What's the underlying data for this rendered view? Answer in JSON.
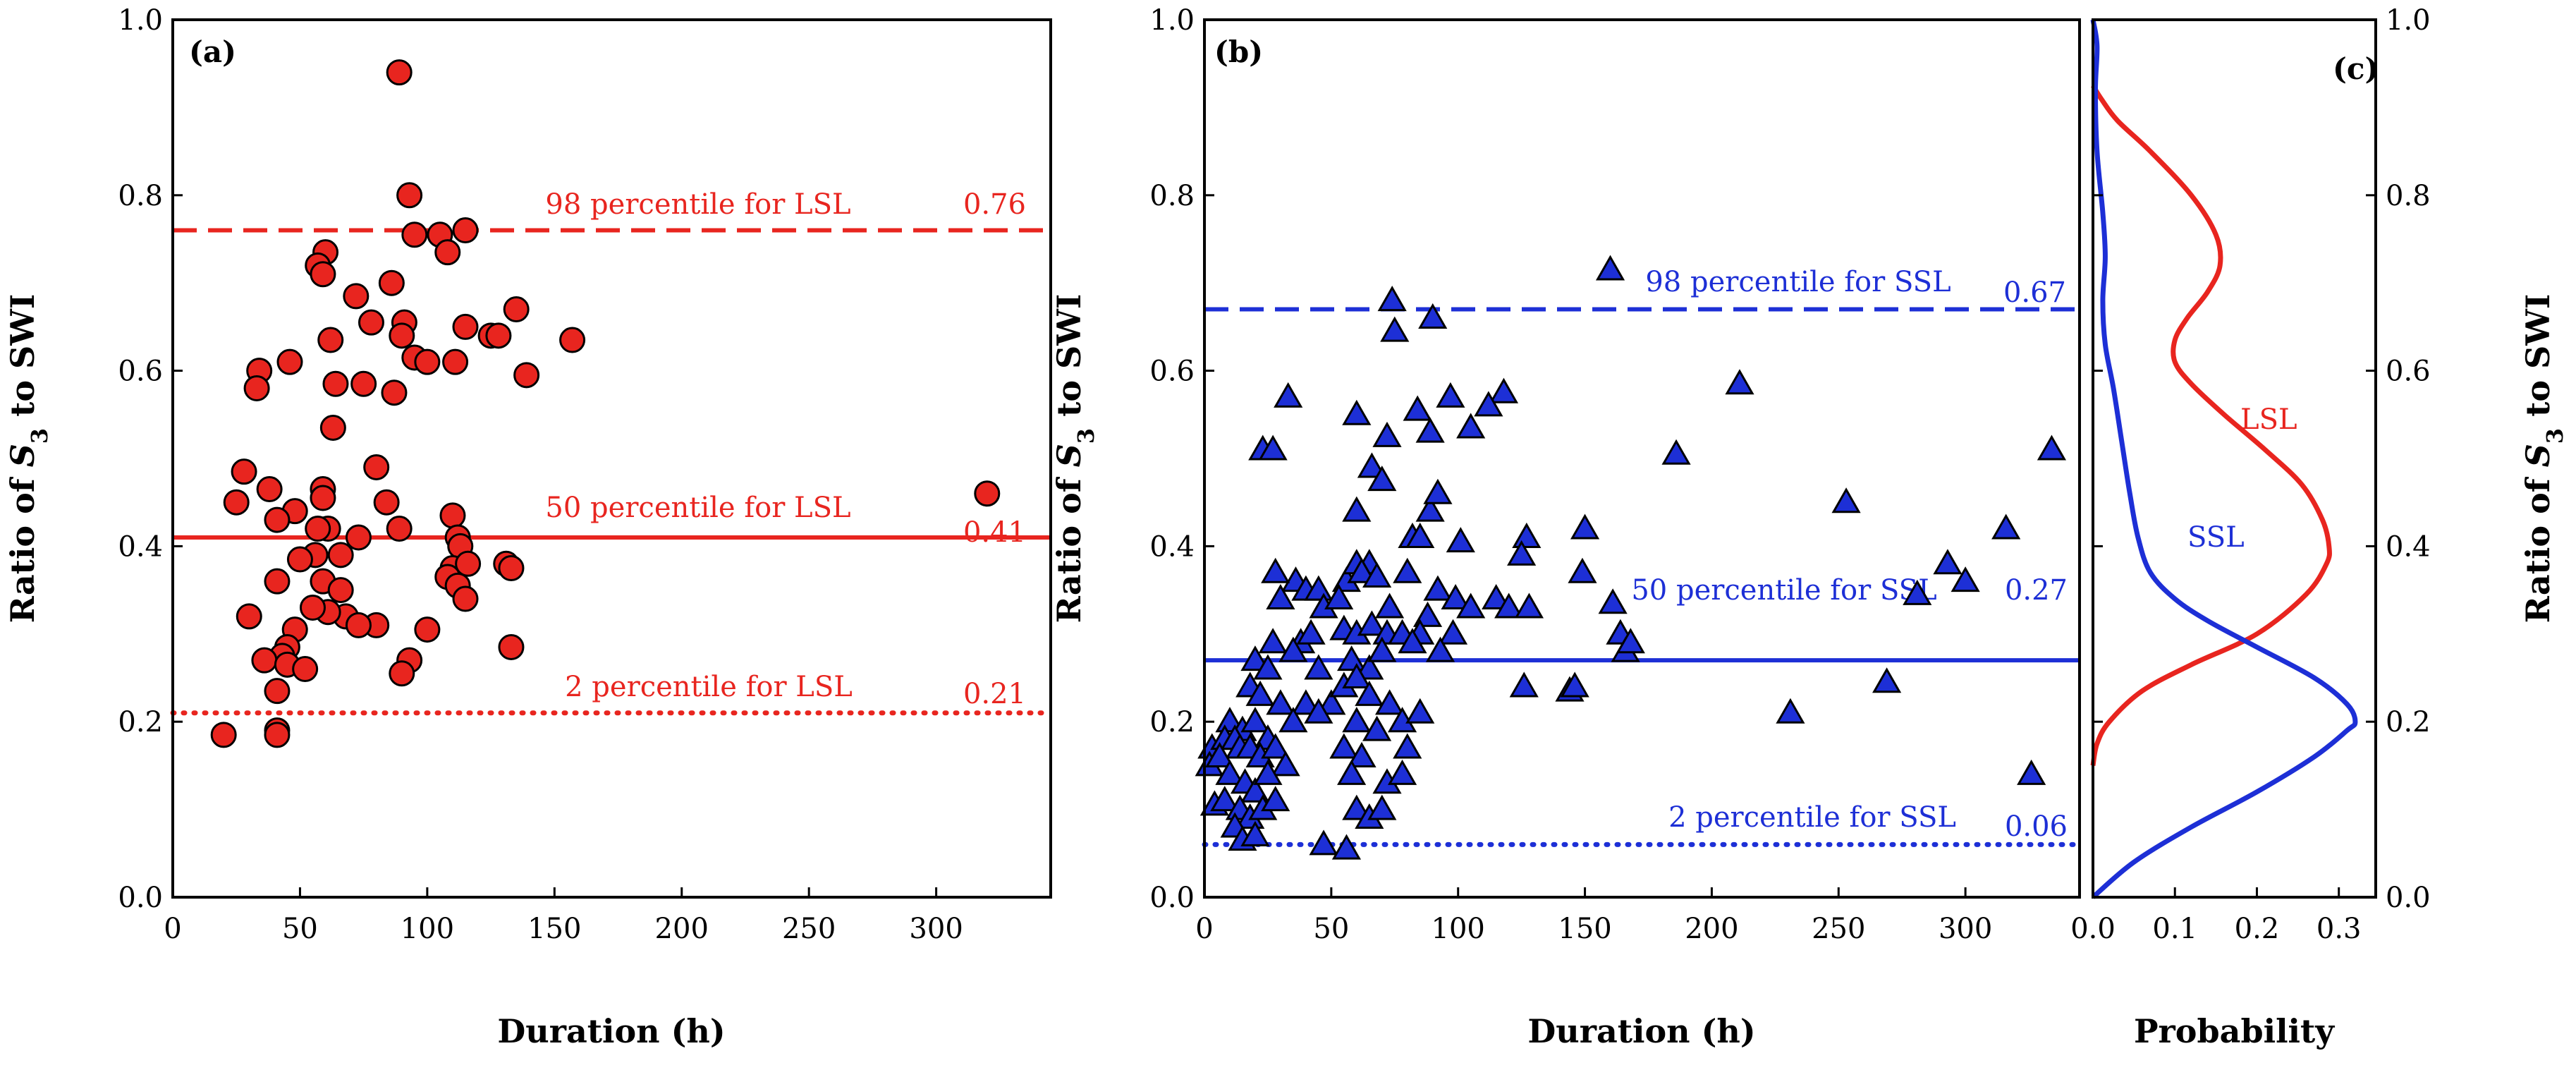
{
  "colors": {
    "lsl": "#e8251f",
    "ssl": "#1d2fd6",
    "axis": "#000000",
    "background": "#ffffff"
  },
  "chart_data": [
    {
      "id": "a",
      "type": "scatter",
      "panel_label": "(a)",
      "xlabel": "Duration (h)",
      "ylabel_prefix": "Ratio of ",
      "ylabel_var": "S",
      "ylabel_sub": "3",
      "ylabel_suffix": " to SWI",
      "xlim": [
        0,
        345
      ],
      "ylim": [
        0,
        1
      ],
      "xticks": [
        0,
        50,
        100,
        150,
        200,
        250,
        300
      ],
      "xtick_labels": [
        "0",
        "50",
        "100",
        "150",
        "200",
        "250",
        "300"
      ],
      "yticks": [
        0,
        0.2,
        0.4,
        0.6,
        0.8,
        1
      ],
      "ytick_labels": [
        "0.0",
        "0.2",
        "0.4",
        "0.6",
        "0.8",
        "1.0"
      ],
      "marker": "circle",
      "color": "#e8251f",
      "points": [
        [
          89,
          0.94
        ],
        [
          93,
          0.8
        ],
        [
          95,
          0.755
        ],
        [
          105,
          0.755
        ],
        [
          115,
          0.76
        ],
        [
          108,
          0.735
        ],
        [
          60,
          0.735
        ],
        [
          57,
          0.72
        ],
        [
          59,
          0.71
        ],
        [
          86,
          0.7
        ],
        [
          72,
          0.685
        ],
        [
          91,
          0.655
        ],
        [
          78,
          0.655
        ],
        [
          95,
          0.615
        ],
        [
          115,
          0.65
        ],
        [
          90,
          0.64
        ],
        [
          100,
          0.61
        ],
        [
          135,
          0.67
        ],
        [
          157,
          0.635
        ],
        [
          125,
          0.64
        ],
        [
          128,
          0.64
        ],
        [
          62,
          0.635
        ],
        [
          46,
          0.61
        ],
        [
          34,
          0.6
        ],
        [
          33,
          0.58
        ],
        [
          111,
          0.61
        ],
        [
          139,
          0.595
        ],
        [
          75,
          0.585
        ],
        [
          64,
          0.585
        ],
        [
          87,
          0.575
        ],
        [
          63,
          0.535
        ],
        [
          80,
          0.49
        ],
        [
          28,
          0.485
        ],
        [
          25,
          0.45
        ],
        [
          38,
          0.465
        ],
        [
          59,
          0.465
        ],
        [
          59,
          0.455
        ],
        [
          84,
          0.45
        ],
        [
          73,
          0.41
        ],
        [
          48,
          0.44
        ],
        [
          110,
          0.435
        ],
        [
          61,
          0.42
        ],
        [
          57,
          0.42
        ],
        [
          89,
          0.42
        ],
        [
          112,
          0.41
        ],
        [
          113,
          0.4
        ],
        [
          41,
          0.43
        ],
        [
          56,
          0.39
        ],
        [
          50,
          0.385
        ],
        [
          66,
          0.39
        ],
        [
          131,
          0.38
        ],
        [
          133,
          0.375
        ],
        [
          110,
          0.375
        ],
        [
          108,
          0.365
        ],
        [
          116,
          0.38
        ],
        [
          59,
          0.36
        ],
        [
          66,
          0.35
        ],
        [
          112,
          0.355
        ],
        [
          115,
          0.34
        ],
        [
          41,
          0.36
        ],
        [
          30,
          0.32
        ],
        [
          68,
          0.32
        ],
        [
          80,
          0.31
        ],
        [
          73,
          0.31
        ],
        [
          61,
          0.325
        ],
        [
          55,
          0.33
        ],
        [
          133,
          0.285
        ],
        [
          100,
          0.305
        ],
        [
          48,
          0.305
        ],
        [
          45,
          0.285
        ],
        [
          43,
          0.275
        ],
        [
          36,
          0.27
        ],
        [
          45,
          0.265
        ],
        [
          52,
          0.26
        ],
        [
          93,
          0.27
        ],
        [
          90,
          0.255
        ],
        [
          41,
          0.235
        ],
        [
          20,
          0.185
        ],
        [
          41,
          0.19
        ],
        [
          41,
          0.185
        ],
        [
          320,
          0.46
        ]
      ],
      "reference_lines": [
        {
          "label": "98 percentile for LSL",
          "value": 0.76,
          "value_label": "0.76",
          "style": "dashed"
        },
        {
          "label": "50 percentile for LSL",
          "value": 0.41,
          "value_label": "0.41",
          "style": "solid"
        },
        {
          "label": "2 percentile for LSL",
          "value": 0.21,
          "value_label": "0.21",
          "style": "dotted"
        }
      ]
    },
    {
      "id": "b",
      "type": "scatter",
      "panel_label": "(b)",
      "xlabel": "Duration (h)",
      "ylabel_prefix": "Ratio of ",
      "ylabel_var": "S",
      "ylabel_sub": "3",
      "ylabel_suffix": " to SWI",
      "xlim": [
        0,
        345
      ],
      "ylim": [
        0,
        1
      ],
      "xticks": [
        0,
        50,
        100,
        150,
        200,
        250,
        300
      ],
      "xtick_labels": [
        "0",
        "50",
        "100",
        "150",
        "200",
        "250",
        "300"
      ],
      "yticks": [
        0,
        0.2,
        0.4,
        0.6,
        0.8,
        1
      ],
      "ytick_labels": [
        "0.0",
        "0.2",
        "0.4",
        "0.6",
        "0.8",
        "1.0"
      ],
      "marker": "triangle",
      "color": "#1d2fd6",
      "points": [
        [
          160,
          0.715
        ],
        [
          74,
          0.68
        ],
        [
          75,
          0.645
        ],
        [
          90,
          0.66
        ],
        [
          97,
          0.57
        ],
        [
          118,
          0.575
        ],
        [
          211,
          0.585
        ],
        [
          33,
          0.57
        ],
        [
          112,
          0.56
        ],
        [
          60,
          0.55
        ],
        [
          72,
          0.525
        ],
        [
          89,
          0.53
        ],
        [
          84,
          0.555
        ],
        [
          105,
          0.535
        ],
        [
          186,
          0.505
        ],
        [
          334,
          0.51
        ],
        [
          23,
          0.51
        ],
        [
          27,
          0.51
        ],
        [
          66,
          0.49
        ],
        [
          70,
          0.475
        ],
        [
          253,
          0.45
        ],
        [
          60,
          0.44
        ],
        [
          89,
          0.44
        ],
        [
          92,
          0.46
        ],
        [
          82,
          0.41
        ],
        [
          85,
          0.41
        ],
        [
          65,
          0.38
        ],
        [
          150,
          0.42
        ],
        [
          127,
          0.41
        ],
        [
          101,
          0.405
        ],
        [
          125,
          0.39
        ],
        [
          316,
          0.42
        ],
        [
          36,
          0.36
        ],
        [
          40,
          0.35
        ],
        [
          45,
          0.35
        ],
        [
          56,
          0.36
        ],
        [
          60,
          0.38
        ],
        [
          62,
          0.37
        ],
        [
          68,
          0.365
        ],
        [
          80,
          0.37
        ],
        [
          92,
          0.35
        ],
        [
          99,
          0.34
        ],
        [
          115,
          0.34
        ],
        [
          28,
          0.37
        ],
        [
          30,
          0.34
        ],
        [
          47,
          0.33
        ],
        [
          53,
          0.34
        ],
        [
          73,
          0.33
        ],
        [
          88,
          0.32
        ],
        [
          105,
          0.33
        ],
        [
          120,
          0.33
        ],
        [
          128,
          0.33
        ],
        [
          149,
          0.37
        ],
        [
          161,
          0.335
        ],
        [
          281,
          0.345
        ],
        [
          293,
          0.38
        ],
        [
          300,
          0.36
        ],
        [
          27,
          0.29
        ],
        [
          38,
          0.29
        ],
        [
          42,
          0.3
        ],
        [
          55,
          0.305
        ],
        [
          60,
          0.3
        ],
        [
          66,
          0.31
        ],
        [
          72,
          0.3
        ],
        [
          78,
          0.3
        ],
        [
          85,
          0.3
        ],
        [
          98,
          0.3
        ],
        [
          20,
          0.27
        ],
        [
          25,
          0.26
        ],
        [
          35,
          0.28
        ],
        [
          45,
          0.26
        ],
        [
          58,
          0.27
        ],
        [
          65,
          0.26
        ],
        [
          70,
          0.28
        ],
        [
          82,
          0.29
        ],
        [
          93,
          0.28
        ],
        [
          164,
          0.3
        ],
        [
          166,
          0.28
        ],
        [
          168,
          0.29
        ],
        [
          269,
          0.245
        ],
        [
          18,
          0.24
        ],
        [
          22,
          0.23
        ],
        [
          30,
          0.22
        ],
        [
          40,
          0.22
        ],
        [
          50,
          0.22
        ],
        [
          55,
          0.24
        ],
        [
          60,
          0.25
        ],
        [
          65,
          0.23
        ],
        [
          73,
          0.22
        ],
        [
          126,
          0.24
        ],
        [
          144,
          0.235
        ],
        [
          146,
          0.24
        ],
        [
          10,
          0.2
        ],
        [
          15,
          0.19
        ],
        [
          20,
          0.2
        ],
        [
          25,
          0.18
        ],
        [
          35,
          0.2
        ],
        [
          45,
          0.21
        ],
        [
          60,
          0.2
        ],
        [
          68,
          0.19
        ],
        [
          78,
          0.2
        ],
        [
          85,
          0.21
        ],
        [
          231,
          0.21
        ],
        [
          3,
          0.17
        ],
        [
          8,
          0.18
        ],
        [
          12,
          0.18
        ],
        [
          14,
          0.17
        ],
        [
          18,
          0.17
        ],
        [
          22,
          0.16
        ],
        [
          28,
          0.17
        ],
        [
          32,
          0.15
        ],
        [
          55,
          0.17
        ],
        [
          62,
          0.16
        ],
        [
          80,
          0.17
        ],
        [
          2,
          0.15
        ],
        [
          6,
          0.16
        ],
        [
          10,
          0.14
        ],
        [
          16,
          0.13
        ],
        [
          20,
          0.12
        ],
        [
          25,
          0.14
        ],
        [
          58,
          0.14
        ],
        [
          72,
          0.13
        ],
        [
          78,
          0.14
        ],
        [
          4,
          0.105
        ],
        [
          8,
          0.11
        ],
        [
          14,
          0.1
        ],
        [
          18,
          0.09
        ],
        [
          23,
          0.1
        ],
        [
          28,
          0.11
        ],
        [
          60,
          0.1
        ],
        [
          65,
          0.09
        ],
        [
          70,
          0.1
        ],
        [
          12,
          0.08
        ],
        [
          15,
          0.065
        ],
        [
          20,
          0.07
        ],
        [
          47,
          0.06
        ],
        [
          56,
          0.055
        ],
        [
          326,
          0.14
        ]
      ],
      "reference_lines": [
        {
          "label": "98 percentile for SSL",
          "value": 0.67,
          "value_label": "0.67",
          "style": "dashed"
        },
        {
          "label": "50 percentile for SSL",
          "value": 0.27,
          "value_label": "0.27",
          "style": "solid"
        },
        {
          "label": "2 percentile for SSL",
          "value": 0.06,
          "value_label": "0.06",
          "style": "dotted"
        }
      ]
    },
    {
      "id": "c",
      "type": "line",
      "panel_label": "(c)",
      "xlabel": "Probability",
      "ylabel_prefix": "Ratio of ",
      "ylabel_var": "S",
      "ylabel_sub": "3",
      "ylabel_suffix": " to SWI",
      "xlim": [
        0,
        0.345
      ],
      "ylim": [
        0,
        1
      ],
      "xticks": [
        0,
        0.1,
        0.2,
        0.3
      ],
      "xtick_labels": [
        "0.0",
        "0.1",
        "0.2",
        "0.3"
      ],
      "yticks": [
        0,
        0.2,
        0.4,
        0.6,
        0.8,
        1
      ],
      "ytick_labels": [
        "0.0",
        "0.2",
        "0.4",
        "0.6",
        "0.8",
        "1.0"
      ],
      "series": [
        {
          "name": "LSL",
          "color": "#e8251f",
          "points": [
            [
              0,
              0.15
            ],
            [
              0.005,
              0.175
            ],
            [
              0.02,
              0.2
            ],
            [
              0.06,
              0.235
            ],
            [
              0.12,
              0.265
            ],
            [
              0.2,
              0.3
            ],
            [
              0.26,
              0.345
            ],
            [
              0.285,
              0.38
            ],
            [
              0.288,
              0.4
            ],
            [
              0.28,
              0.43
            ],
            [
              0.255,
              0.47
            ],
            [
              0.21,
              0.51
            ],
            [
              0.16,
              0.55
            ],
            [
              0.12,
              0.585
            ],
            [
              0.1,
              0.61
            ],
            [
              0.1,
              0.635
            ],
            [
              0.115,
              0.66
            ],
            [
              0.14,
              0.69
            ],
            [
              0.155,
              0.72
            ],
            [
              0.15,
              0.755
            ],
            [
              0.12,
              0.8
            ],
            [
              0.07,
              0.85
            ],
            [
              0.03,
              0.885
            ],
            [
              0.01,
              0.91
            ],
            [
              0,
              0.925
            ]
          ]
        },
        {
          "name": "SSL",
          "color": "#1d2fd6",
          "points": [
            [
              0,
              0
            ],
            [
              0.05,
              0.04
            ],
            [
              0.12,
              0.08
            ],
            [
              0.2,
              0.12
            ],
            [
              0.27,
              0.16
            ],
            [
              0.31,
              0.19
            ],
            [
              0.32,
              0.2
            ],
            [
              0.31,
              0.22
            ],
            [
              0.27,
              0.25
            ],
            [
              0.2,
              0.285
            ],
            [
              0.14,
              0.315
            ],
            [
              0.1,
              0.34
            ],
            [
              0.07,
              0.37
            ],
            [
              0.055,
              0.41
            ],
            [
              0.045,
              0.46
            ],
            [
              0.035,
              0.52
            ],
            [
              0.025,
              0.58
            ],
            [
              0.015,
              0.63
            ],
            [
              0.012,
              0.68
            ],
            [
              0.015,
              0.73
            ],
            [
              0.012,
              0.78
            ],
            [
              0.005,
              0.85
            ],
            [
              0.003,
              0.92
            ],
            [
              0.005,
              0.97
            ],
            [
              0,
              1
            ]
          ]
        }
      ],
      "series_labels": [
        "LSL",
        "SSL"
      ]
    }
  ]
}
